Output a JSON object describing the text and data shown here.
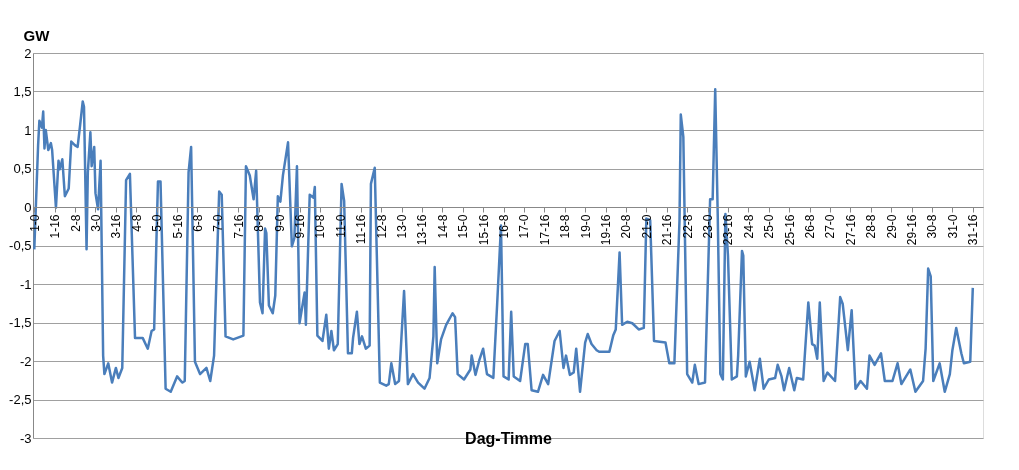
{
  "chart_data": {
    "type": "line",
    "ylabel": "GW",
    "xlabel": "Dag-Timme",
    "categories": [
      "1-0",
      null,
      null,
      null,
      null,
      null,
      null,
      null,
      null,
      null,
      null,
      null,
      null,
      null,
      null,
      null,
      "1-16",
      null,
      null,
      null,
      null,
      null,
      null,
      null,
      null,
      null,
      null,
      null,
      null,
      null,
      null,
      null,
      "2-8",
      null,
      null,
      null,
      null,
      null,
      null,
      null,
      null,
      null,
      null,
      null,
      null,
      null,
      null,
      null,
      "3-0",
      null,
      null,
      null,
      null,
      null,
      null,
      null,
      null,
      null,
      null,
      null,
      null,
      null,
      null,
      null,
      "3-16",
      null,
      null,
      null,
      null,
      null,
      null,
      null,
      null,
      null,
      null,
      null,
      null,
      null,
      null,
      null,
      "4-8",
      null,
      null,
      null,
      null,
      null,
      null,
      null,
      null,
      null,
      null,
      null,
      null,
      null,
      null,
      null,
      "5-0",
      null,
      null,
      null,
      null,
      null,
      null,
      null,
      null,
      null,
      null,
      null,
      null,
      null,
      null,
      null,
      "5-16",
      null,
      null,
      null,
      null,
      null,
      null,
      null,
      null,
      null,
      null,
      null,
      null,
      null,
      null,
      null,
      "6-8",
      null,
      null,
      null,
      null,
      null,
      null,
      null,
      null,
      null,
      null,
      null,
      null,
      null,
      null,
      null,
      "7-0",
      null,
      null,
      null,
      null,
      null,
      null,
      null,
      null,
      null,
      null,
      null,
      null,
      null,
      null,
      null,
      "7-16",
      null,
      null,
      null,
      null,
      null,
      null,
      null,
      null,
      null,
      null,
      null,
      null,
      null,
      null,
      null,
      "8-8",
      null,
      null,
      null,
      null,
      null,
      null,
      null,
      null,
      null,
      null,
      null,
      null,
      null,
      null,
      null,
      "9-0",
      null,
      null,
      null,
      null,
      null,
      null,
      null,
      null,
      null,
      null,
      null,
      null,
      null,
      null,
      null,
      "9-16",
      null,
      null,
      null,
      null,
      null,
      null,
      null,
      null,
      null,
      null,
      null,
      null,
      null,
      null,
      null,
      "10-8",
      null,
      null,
      null,
      null,
      null,
      null,
      null,
      null,
      null,
      null,
      null,
      null,
      null,
      null,
      null,
      "11-0",
      null,
      null,
      null,
      null,
      null,
      null,
      null,
      null,
      null,
      null,
      null,
      null,
      null,
      null,
      null,
      "11-16",
      null,
      null,
      null,
      null,
      null,
      null,
      null,
      null,
      null,
      null,
      null,
      null,
      null,
      null,
      null,
      "12-8",
      null,
      null,
      null,
      null,
      null,
      null,
      null,
      null,
      null,
      null,
      null,
      null,
      null,
      null,
      null,
      "13-0",
      null,
      null,
      null,
      null,
      null,
      null,
      null,
      null,
      null,
      null,
      null,
      null,
      null,
      null,
      null,
      "13-16",
      null,
      null,
      null,
      null,
      null,
      null,
      null,
      null,
      null,
      null,
      null,
      null,
      null,
      null,
      null,
      "14-8",
      null,
      null,
      null,
      null,
      null,
      null,
      null,
      null,
      null,
      null,
      null,
      null,
      null,
      null,
      null,
      "15-0",
      null,
      null,
      null,
      null,
      null,
      null,
      null,
      null,
      null,
      null,
      null,
      null,
      null,
      null,
      null,
      "15-16",
      null,
      null,
      null,
      null,
      null,
      null,
      null,
      null,
      null,
      null,
      null,
      null,
      null,
      null,
      null,
      "16-8",
      null,
      null,
      null,
      null,
      null,
      null,
      null,
      null,
      null,
      null,
      null,
      null,
      null,
      null,
      null,
      "17-0",
      null,
      null,
      null,
      null,
      null,
      null,
      null,
      null,
      null,
      null,
      null,
      null,
      null,
      null,
      null,
      "17-16",
      null,
      null,
      null,
      null,
      null,
      null,
      null,
      null,
      null,
      null,
      null,
      null,
      null,
      null,
      null,
      "18-8",
      null,
      null,
      null,
      null,
      null,
      null,
      null,
      null,
      null,
      null,
      null,
      null,
      null,
      null,
      null,
      "19-0",
      null,
      null,
      null,
      null,
      null,
      null,
      null,
      null,
      null,
      null,
      null,
      null,
      null,
      null,
      null,
      "19-16",
      null,
      null,
      null,
      null,
      null,
      null,
      null,
      null,
      null,
      null,
      null,
      null,
      null,
      null,
      null,
      "20-8",
      null,
      null,
      null,
      null,
      null,
      null,
      null,
      null,
      null,
      null,
      null,
      null,
      null,
      null,
      null,
      "21-0",
      null,
      null,
      null,
      null,
      null,
      null,
      null,
      null,
      null,
      null,
      null,
      null,
      null,
      null,
      null,
      "21-16",
      null,
      null,
      null,
      null,
      null,
      null,
      null,
      null,
      null,
      null,
      null,
      null,
      null,
      null,
      null,
      "22-8",
      null,
      null,
      null,
      null,
      null,
      null,
      null,
      null,
      null,
      null,
      null,
      null,
      null,
      null,
      null,
      "23-0",
      null,
      null,
      null,
      null,
      null,
      null,
      null,
      null,
      null,
      null,
      null,
      null,
      null,
      null,
      null,
      "23-16",
      null,
      null,
      null,
      null,
      null,
      null,
      null,
      null,
      null,
      null,
      null,
      null,
      null,
      null,
      null,
      "24-8",
      null,
      null,
      null,
      null,
      null,
      null,
      null,
      null,
      null,
      null,
      null,
      null,
      null,
      null,
      null,
      "25-0",
      null,
      null,
      null,
      null,
      null,
      null,
      null,
      null,
      null,
      null,
      null,
      null,
      null,
      null,
      null,
      "25-16",
      null,
      null,
      null,
      null,
      null,
      null,
      null,
      null,
      null,
      null,
      null,
      null,
      null,
      null,
      null,
      "26-8",
      null,
      null,
      null,
      null,
      null,
      null,
      null,
      null,
      null,
      null,
      null,
      null,
      null,
      null,
      null,
      "27-0",
      null,
      null,
      null,
      null,
      null,
      null,
      null,
      null,
      null,
      null,
      null,
      null,
      null,
      null,
      null,
      "27-16",
      null,
      null,
      null,
      null,
      null,
      null,
      null,
      null,
      null,
      null,
      null,
      null,
      null,
      null,
      null,
      "28-8",
      null,
      null,
      null,
      null,
      null,
      null,
      null,
      null,
      null,
      null,
      null,
      null,
      null,
      null,
      null,
      "29-0",
      null,
      null,
      null,
      null,
      null,
      null,
      null,
      null,
      null,
      null,
      null,
      null,
      null,
      null,
      null,
      "29-16",
      null,
      null,
      null,
      null,
      null,
      null,
      null,
      null,
      null,
      null,
      null,
      null,
      null,
      null,
      null,
      "30-8",
      null,
      null,
      null,
      null,
      null,
      null,
      null,
      null,
      null,
      null,
      null,
      null,
      null,
      null,
      null,
      "31-0",
      null,
      null,
      null,
      null,
      null,
      null,
      null,
      null,
      null,
      null,
      null,
      null,
      null,
      null,
      null,
      "31-16",
      null,
      null,
      null,
      null,
      null,
      null,
      null
    ],
    "series": [
      {
        "color": "#4a7ebb",
        "values": [
          -0.55,
          null,
          null,
          0.8,
          1.12,
          null,
          1.03,
          1.24,
          0.76,
          1.0,
          null,
          0.74,
          null,
          0.83,
          0.74,
          null,
          null,
          -0.01,
          null,
          0.6,
          0.49,
          null,
          0.62,
          null,
          0.14,
          null,
          null,
          0.24,
          null,
          0.85,
          null,
          null,
          0.8,
          null,
          0.78,
          null,
          1.07,
          null,
          1.37,
          1.3,
          null,
          -0.55,
          0.45,
          null,
          0.97,
          0.53,
          null,
          0.78,
          0.18,
          null,
          -0.03,
          null,
          0.6,
          null,
          -1.93,
          -2.17,
          null,
          null,
          -2.03,
          null,
          null,
          -2.28,
          null,
          null,
          -2.09,
          null,
          -2.22,
          null,
          null,
          -2.09,
          null,
          null,
          0.35,
          null,
          null,
          0.43,
          null,
          null,
          null,
          -1.7,
          null,
          null,
          null,
          null,
          null,
          -1.7,
          null,
          null,
          null,
          -1.84,
          null,
          null,
          -1.61,
          null,
          -1.59,
          null,
          null,
          0.33,
          null,
          0.33,
          null,
          null,
          null,
          -2.36,
          null,
          null,
          null,
          -2.4,
          null,
          null,
          null,
          null,
          -2.2,
          null,
          null,
          null,
          -2.28,
          null,
          -2.26,
          null,
          null,
          0.45,
          null,
          0.78,
          null,
          null,
          -2.01,
          null,
          null,
          null,
          -2.17,
          null,
          null,
          null,
          null,
          -2.09,
          null,
          null,
          -2.26,
          null,
          null,
          -1.93,
          null,
          null,
          null,
          0.2,
          null,
          0.16,
          null,
          null,
          -1.68,
          null,
          null,
          null,
          null,
          null,
          -1.72,
          null,
          null,
          null,
          null,
          null,
          null,
          null,
          -1.67,
          null,
          0.53,
          null,
          null,
          0.41,
          null,
          null,
          0.1,
          null,
          0.47,
          null,
          null,
          -1.24,
          null,
          -1.38,
          null,
          -0.28,
          -0.34,
          null,
          -1.28,
          null,
          null,
          -1.38,
          null,
          -1.15,
          null,
          0.14,
          null,
          0.07,
          null,
          0.41,
          null,
          null,
          null,
          0.84,
          null,
          null,
          -0.51,
          null,
          -0.4,
          null,
          0.53,
          null,
          -1.51,
          null,
          null,
          null,
          -1.11,
          -1.53,
          null,
          null,
          0.16,
          null,
          null,
          0.12,
          0.26,
          null,
          -1.67,
          null,
          null,
          null,
          -1.74,
          null,
          null,
          -1.4,
          null,
          -1.84,
          null,
          -1.61,
          null,
          -1.86,
          null,
          null,
          -1.78,
          null,
          null,
          0.3,
          null,
          0.08,
          null,
          null,
          -1.9,
          null,
          null,
          -1.9,
          -1.7,
          null,
          null,
          -1.36,
          null,
          -1.78,
          null,
          -1.68,
          null,
          null,
          -1.84,
          null,
          null,
          -1.8,
          0.3,
          null,
          null,
          0.51,
          null,
          null,
          null,
          -2.28,
          null,
          null,
          null,
          null,
          -2.32,
          null,
          -2.3,
          null,
          -2.03,
          null,
          null,
          -2.3,
          null,
          null,
          -2.26,
          null,
          null,
          null,
          -1.09,
          null,
          null,
          -2.3,
          null,
          null,
          null,
          -2.17,
          null,
          null,
          null,
          -2.28,
          null,
          null,
          null,
          null,
          -2.36,
          null,
          null,
          null,
          -2.22,
          null,
          null,
          -1.68,
          -0.78,
          null,
          -2.03,
          null,
          null,
          -1.72,
          null,
          null,
          null,
          -1.53,
          null,
          null,
          null,
          null,
          -1.38,
          null,
          -1.43,
          null,
          -2.17,
          null,
          null,
          null,
          null,
          -2.24,
          null,
          null,
          null,
          null,
          -2.11,
          -1.93,
          null,
          null,
          -2.18,
          null,
          null,
          -1.99,
          null,
          null,
          -1.84,
          null,
          null,
          -2.17,
          null,
          null,
          null,
          null,
          -2.22,
          null,
          null,
          -1.26,
          null,
          null,
          -0.24,
          null,
          -2.2,
          null,
          null,
          null,
          -2.24,
          null,
          -1.36,
          null,
          -2.2,
          null,
          null,
          null,
          null,
          -2.26,
          null,
          null,
          null,
          -1.78,
          null,
          -1.78,
          null,
          null,
          -2.38,
          null,
          null,
          null,
          null,
          -2.4,
          null,
          null,
          null,
          -2.18,
          null,
          null,
          null,
          -2.3,
          null,
          null,
          null,
          null,
          -1.74,
          null,
          null,
          null,
          -1.61,
          null,
          null,
          -2.09,
          null,
          -1.93,
          null,
          null,
          -2.18,
          null,
          null,
          -2.15,
          null,
          -1.84,
          null,
          null,
          -2.4,
          null,
          null,
          null,
          -1.76,
          null,
          -1.65,
          null,
          null,
          -1.78,
          null,
          null,
          null,
          -1.86,
          null,
          -1.88,
          null,
          null,
          null,
          null,
          null,
          null,
          null,
          -1.88,
          null,
          null,
          -1.67,
          null,
          -1.59,
          null,
          null,
          -0.59,
          null,
          -1.53,
          null,
          null,
          null,
          -1.49,
          null,
          null,
          null,
          -1.51,
          null,
          null,
          null,
          null,
          -1.59,
          null,
          null,
          null,
          -1.57,
          null,
          -0.15,
          null,
          null,
          -0.17,
          null,
          null,
          -1.74,
          null,
          null,
          null,
          null,
          null,
          null,
          null,
          null,
          -1.76,
          null,
          null,
          -2.03,
          null,
          null,
          null,
          -2.03,
          null,
          null,
          null,
          -0.17,
          1.2,
          null,
          0.91,
          null,
          null,
          -2.17,
          null,
          null,
          null,
          -2.28,
          null,
          -2.05,
          null,
          null,
          -2.3,
          null,
          null,
          null,
          null,
          -2.28,
          null,
          null,
          null,
          0.1,
          null,
          0.1,
          null,
          1.53,
          null,
          -0.13,
          null,
          -2.17,
          null,
          -2.24,
          null,
          -0.09,
          null,
          -0.63,
          null,
          null,
          -2.24,
          null,
          null,
          null,
          -2.2,
          -1.93,
          null,
          null,
          -0.57,
          -0.63,
          null,
          -2.2,
          null,
          null,
          -2.01,
          null,
          null,
          null,
          -2.38,
          null,
          null,
          null,
          -1.97,
          null,
          null,
          -2.36,
          null,
          null,
          null,
          -2.24,
          null,
          null,
          null,
          null,
          -2.22,
          null,
          -2.05,
          null,
          null,
          -2.2,
          null,
          -2.38,
          null,
          null,
          null,
          -2.09,
          null,
          null,
          null,
          -2.38,
          null,
          -2.22,
          null,
          null,
          null,
          null,
          -2.24,
          null,
          null,
          null,
          -1.24,
          null,
          null,
          -1.78,
          null,
          -1.8,
          null,
          -1.97,
          null,
          -1.24,
          null,
          null,
          -2.26,
          null,
          null,
          -2.15,
          null,
          null,
          null,
          null,
          null,
          -2.26,
          null,
          null,
          null,
          -1.17,
          null,
          -1.26,
          null,
          null,
          null,
          -1.86,
          null,
          null,
          -1.34,
          null,
          null,
          -2.36,
          null,
          null,
          null,
          -2.26,
          null,
          null,
          null,
          null,
          -2.36,
          null,
          -1.93,
          null,
          null,
          null,
          -2.05,
          null,
          null,
          null,
          null,
          -1.9,
          null,
          null,
          -2.26,
          null,
          null,
          null,
          null,
          null,
          -2.26,
          null,
          null,
          null,
          -2.03,
          null,
          null,
          -2.3,
          null,
          null,
          null,
          null,
          null,
          null,
          -2.11,
          null,
          null,
          null,
          -2.4,
          null,
          null,
          null,
          null,
          null,
          -2.26,
          null,
          -1.84,
          null,
          -0.8,
          null,
          -0.9,
          null,
          -2.26,
          null,
          null,
          null,
          null,
          -2.03,
          null,
          null,
          null,
          -2.4,
          null,
          null,
          null,
          -2.17,
          null,
          -1.86,
          null,
          null,
          -1.57,
          null,
          null,
          null,
          -1.9,
          null,
          -2.03,
          null,
          null,
          null,
          null,
          -2.01,
          null,
          -1.05,
          null,
          null,
          null,
          null,
          null,
          null,
          null
        ]
      }
    ],
    "ylim": [
      -3,
      2
    ],
    "yticks": [
      {
        "value": -3,
        "label": "-3"
      },
      {
        "value": -2.5,
        "label": "-2,5"
      },
      {
        "value": -2,
        "label": "-2"
      },
      {
        "value": -1.5,
        "label": "-1,5"
      },
      {
        "value": -1,
        "label": "-1"
      },
      {
        "value": -0.5,
        "label": "-0,5"
      },
      {
        "value": 0,
        "label": "0"
      },
      {
        "value": 0.5,
        "label": "0,5"
      },
      {
        "value": 1,
        "label": "1"
      },
      {
        "value": 1.5,
        "label": "1,5"
      },
      {
        "value": 2,
        "label": "2"
      }
    ],
    "grid": "y",
    "marker": "none",
    "line_style": "solid"
  }
}
